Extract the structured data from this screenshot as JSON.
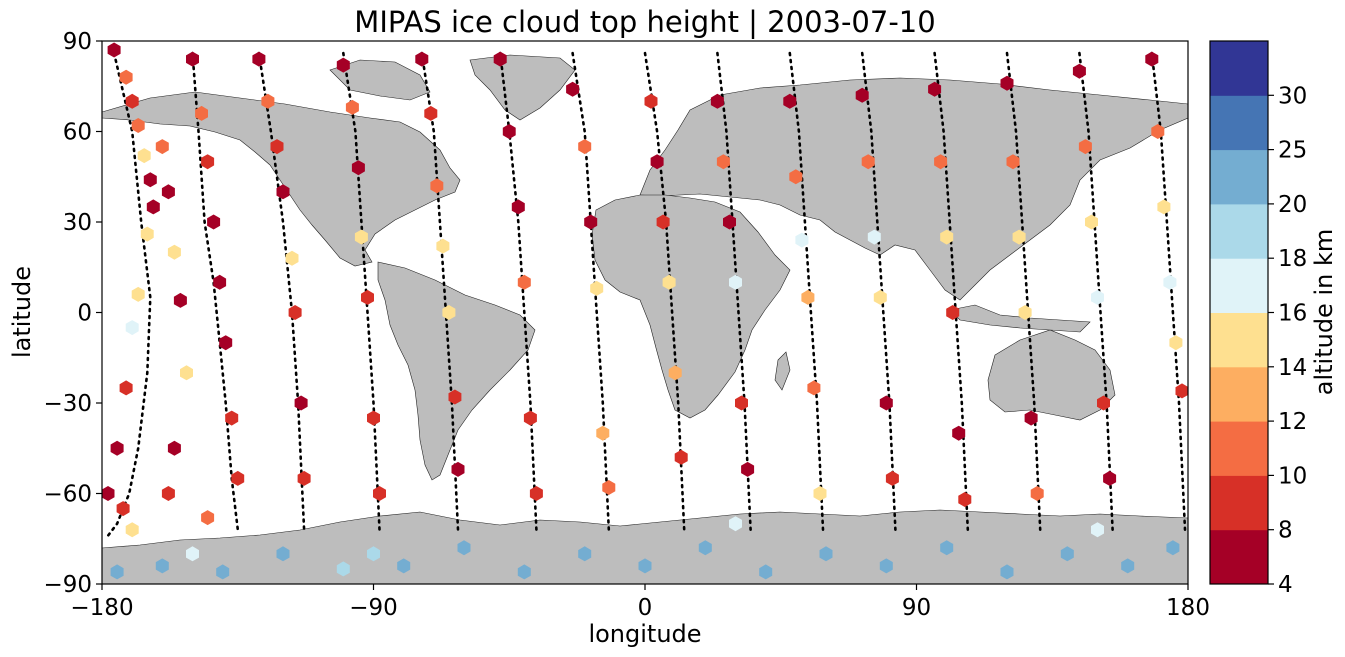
{
  "chart_data": {
    "type": "scatter",
    "title": "MIPAS ice cloud top height | 2003-07-10",
    "xlabel": "longitude",
    "ylabel": "latitude",
    "xlim": [
      -180,
      180
    ],
    "ylim": [
      -90,
      90
    ],
    "xticks": [
      "−180",
      "−90",
      "0",
      "90",
      "180"
    ],
    "xtick_values": [
      -180,
      -90,
      0,
      90,
      180
    ],
    "yticks": [
      "90",
      "60",
      "30",
      "0",
      "−30",
      "−60",
      "−90"
    ],
    "ytick_values": [
      90,
      60,
      30,
      0,
      -30,
      -60,
      -90
    ],
    "colorbar": {
      "label": "altitude in km",
      "bounds": [
        4,
        8,
        10,
        12,
        14,
        16,
        18,
        20,
        25,
        30
      ],
      "tick_labels": [
        "4",
        "8",
        "10",
        "12",
        "14",
        "16",
        "18",
        "20",
        "25",
        "30"
      ],
      "colors": [
        "#a50026",
        "#d73027",
        "#f46d43",
        "#fdae61",
        "#fee090",
        "#e0f3f8",
        "#abd9e9",
        "#74add1",
        "#4575b4",
        "#313695"
      ]
    },
    "background": "world map (land in grey, ocean in white)",
    "orbit_tracks": [
      {
        "x": [
          -176,
          -170,
          -167,
          -164,
          -165,
          -168,
          -171,
          -175,
          -178
        ],
        "y": [
          86,
          60,
          30,
          5,
          -20,
          -45,
          -60,
          -70,
          -74
        ]
      },
      {
        "x": [
          -150,
          -148,
          -146,
          -143,
          -141,
          -139,
          -137,
          -135
        ],
        "y": [
          86,
          60,
          30,
          10,
          -10,
          -30,
          -55,
          -72
        ]
      },
      {
        "x": [
          -128,
          -124,
          -120,
          -117,
          -115,
          -113
        ],
        "y": [
          86,
          60,
          30,
          0,
          -30,
          -72
        ]
      },
      {
        "x": [
          -100,
          -96,
          -94,
          -92,
          -90,
          -88
        ],
        "y": [
          86,
          60,
          30,
          0,
          -30,
          -72
        ]
      },
      {
        "x": [
          -74,
          -70,
          -68,
          -66,
          -64,
          -62
        ],
        "y": [
          86,
          60,
          30,
          0,
          -30,
          -72
        ]
      },
      {
        "x": [
          -48,
          -45,
          -42,
          -40,
          -38,
          -36
        ],
        "y": [
          86,
          60,
          30,
          0,
          -30,
          -72
        ]
      },
      {
        "x": [
          -24,
          -20,
          -18,
          -16,
          -14,
          -12
        ],
        "y": [
          86,
          60,
          30,
          0,
          -30,
          -72
        ]
      },
      {
        "x": [
          0,
          4,
          7,
          9,
          11,
          13
        ],
        "y": [
          86,
          60,
          30,
          0,
          -30,
          -72
        ]
      },
      {
        "x": [
          24,
          27,
          29,
          31,
          33,
          35
        ],
        "y": [
          86,
          60,
          30,
          0,
          -30,
          -72
        ]
      },
      {
        "x": [
          48,
          51,
          53,
          55,
          57,
          59
        ],
        "y": [
          86,
          60,
          30,
          0,
          -30,
          -72
        ]
      },
      {
        "x": [
          72,
          75,
          77,
          79,
          81,
          83
        ],
        "y": [
          86,
          60,
          30,
          0,
          -30,
          -72
        ]
      },
      {
        "x": [
          96,
          99,
          101,
          103,
          105,
          107
        ],
        "y": [
          86,
          60,
          30,
          0,
          -30,
          -72
        ]
      },
      {
        "x": [
          120,
          123,
          125,
          127,
          129,
          131
        ],
        "y": [
          86,
          60,
          30,
          0,
          -30,
          -72
        ]
      },
      {
        "x": [
          144,
          147,
          149,
          151,
          153,
          155
        ],
        "y": [
          86,
          60,
          30,
          0,
          -30,
          -72
        ]
      },
      {
        "x": [
          168,
          171,
          173,
          175,
          177,
          179
        ],
        "y": [
          86,
          60,
          30,
          0,
          -30,
          -72
        ]
      }
    ],
    "points": [
      {
        "x": -176,
        "y": 87,
        "v": 6
      },
      {
        "x": -172,
        "y": 78,
        "v": 11
      },
      {
        "x": -170,
        "y": 70,
        "v": 9
      },
      {
        "x": -168,
        "y": 62,
        "v": 11
      },
      {
        "x": -166,
        "y": 52,
        "v": 15
      },
      {
        "x": -164,
        "y": 44,
        "v": 7
      },
      {
        "x": -163,
        "y": 35,
        "v": 6
      },
      {
        "x": -165,
        "y": 26,
        "v": 15
      },
      {
        "x": -168,
        "y": 6,
        "v": 15
      },
      {
        "x": -170,
        "y": -5,
        "v": 17
      },
      {
        "x": -172,
        "y": -25,
        "v": 9
      },
      {
        "x": -175,
        "y": -45,
        "v": 7
      },
      {
        "x": -178,
        "y": -60,
        "v": 6
      },
      {
        "x": -173,
        "y": -65,
        "v": 8
      },
      {
        "x": -170,
        "y": -72,
        "v": 15
      },
      {
        "x": -160,
        "y": 55,
        "v": 11
      },
      {
        "x": -158,
        "y": 40,
        "v": 7
      },
      {
        "x": -156,
        "y": 20,
        "v": 15
      },
      {
        "x": -154,
        "y": 4,
        "v": 7
      },
      {
        "x": -152,
        "y": -20,
        "v": 15
      },
      {
        "x": -156,
        "y": -45,
        "v": 7
      },
      {
        "x": -158,
        "y": -60,
        "v": 9
      },
      {
        "x": -150,
        "y": 84,
        "v": 7
      },
      {
        "x": -147,
        "y": 66,
        "v": 11
      },
      {
        "x": -145,
        "y": 50,
        "v": 9
      },
      {
        "x": -143,
        "y": 30,
        "v": 6
      },
      {
        "x": -141,
        "y": 10,
        "v": 6
      },
      {
        "x": -139,
        "y": -10,
        "v": 7
      },
      {
        "x": -137,
        "y": -35,
        "v": 9
      },
      {
        "x": -135,
        "y": -55,
        "v": 8
      },
      {
        "x": -145,
        "y": -68,
        "v": 11
      },
      {
        "x": -128,
        "y": 84,
        "v": 6
      },
      {
        "x": -125,
        "y": 70,
        "v": 11
      },
      {
        "x": -122,
        "y": 55,
        "v": 9
      },
      {
        "x": -120,
        "y": 40,
        "v": 6
      },
      {
        "x": -117,
        "y": 18,
        "v": 15
      },
      {
        "x": -116,
        "y": 0,
        "v": 8
      },
      {
        "x": -114,
        "y": -30,
        "v": 7
      },
      {
        "x": -113,
        "y": -55,
        "v": 9
      },
      {
        "x": -100,
        "y": 82,
        "v": 7
      },
      {
        "x": -97,
        "y": 68,
        "v": 11
      },
      {
        "x": -95,
        "y": 48,
        "v": 6
      },
      {
        "x": -94,
        "y": 25,
        "v": 15
      },
      {
        "x": -92,
        "y": 5,
        "v": 9
      },
      {
        "x": -90,
        "y": -35,
        "v": 9
      },
      {
        "x": -88,
        "y": -60,
        "v": 8
      },
      {
        "x": -74,
        "y": 84,
        "v": 6
      },
      {
        "x": -71,
        "y": 66,
        "v": 8
      },
      {
        "x": -69,
        "y": 42,
        "v": 11
      },
      {
        "x": -67,
        "y": 22,
        "v": 15
      },
      {
        "x": -65,
        "y": 0,
        "v": 15
      },
      {
        "x": -63,
        "y": -28,
        "v": 9
      },
      {
        "x": -62,
        "y": -52,
        "v": 7
      },
      {
        "x": -48,
        "y": 84,
        "v": 6
      },
      {
        "x": -45,
        "y": 60,
        "v": 7
      },
      {
        "x": -42,
        "y": 35,
        "v": 6
      },
      {
        "x": -40,
        "y": 10,
        "v": 11
      },
      {
        "x": -38,
        "y": -35,
        "v": 9
      },
      {
        "x": -36,
        "y": -60,
        "v": 8
      },
      {
        "x": -24,
        "y": 74,
        "v": 6
      },
      {
        "x": -20,
        "y": 55,
        "v": 11
      },
      {
        "x": -18,
        "y": 30,
        "v": 7
      },
      {
        "x": -16,
        "y": 8,
        "v": 15
      },
      {
        "x": -14,
        "y": -40,
        "v": 13
      },
      {
        "x": -12,
        "y": -58,
        "v": 11
      },
      {
        "x": 2,
        "y": 70,
        "v": 9
      },
      {
        "x": 4,
        "y": 50,
        "v": 7
      },
      {
        "x": 6,
        "y": 30,
        "v": 9
      },
      {
        "x": 8,
        "y": 10,
        "v": 15
      },
      {
        "x": 10,
        "y": -20,
        "v": 13
      },
      {
        "x": 12,
        "y": -48,
        "v": 9
      },
      {
        "x": 24,
        "y": 70,
        "v": 6
      },
      {
        "x": 26,
        "y": 50,
        "v": 11
      },
      {
        "x": 28,
        "y": 30,
        "v": 7
      },
      {
        "x": 30,
        "y": 10,
        "v": 17
      },
      {
        "x": 32,
        "y": -30,
        "v": 9
      },
      {
        "x": 34,
        "y": -52,
        "v": 6
      },
      {
        "x": 48,
        "y": 70,
        "v": 7
      },
      {
        "x": 50,
        "y": 45,
        "v": 11
      },
      {
        "x": 52,
        "y": 24,
        "v": 17
      },
      {
        "x": 54,
        "y": 5,
        "v": 13
      },
      {
        "x": 56,
        "y": -25,
        "v": 11
      },
      {
        "x": 58,
        "y": -60,
        "v": 14
      },
      {
        "x": 72,
        "y": 72,
        "v": 6
      },
      {
        "x": 74,
        "y": 50,
        "v": 11
      },
      {
        "x": 76,
        "y": 25,
        "v": 17
      },
      {
        "x": 78,
        "y": 5,
        "v": 15
      },
      {
        "x": 80,
        "y": -30,
        "v": 7
      },
      {
        "x": 82,
        "y": -55,
        "v": 8
      },
      {
        "x": 96,
        "y": 74,
        "v": 6
      },
      {
        "x": 98,
        "y": 50,
        "v": 11
      },
      {
        "x": 100,
        "y": 25,
        "v": 15
      },
      {
        "x": 102,
        "y": 0,
        "v": 9
      },
      {
        "x": 104,
        "y": -40,
        "v": 7
      },
      {
        "x": 106,
        "y": -62,
        "v": 9
      },
      {
        "x": 120,
        "y": 76,
        "v": 7
      },
      {
        "x": 122,
        "y": 50,
        "v": 11
      },
      {
        "x": 124,
        "y": 25,
        "v": 15
      },
      {
        "x": 126,
        "y": 0,
        "v": 15
      },
      {
        "x": 128,
        "y": -35,
        "v": 7
      },
      {
        "x": 130,
        "y": -60,
        "v": 11
      },
      {
        "x": 144,
        "y": 80,
        "v": 6
      },
      {
        "x": 146,
        "y": 55,
        "v": 11
      },
      {
        "x": 148,
        "y": 30,
        "v": 15
      },
      {
        "x": 150,
        "y": 5,
        "v": 17
      },
      {
        "x": 152,
        "y": -30,
        "v": 9
      },
      {
        "x": 154,
        "y": -55,
        "v": 6
      },
      {
        "x": 168,
        "y": 84,
        "v": 6
      },
      {
        "x": 170,
        "y": 60,
        "v": 11
      },
      {
        "x": 172,
        "y": 35,
        "v": 15
      },
      {
        "x": 174,
        "y": 10,
        "v": 17
      },
      {
        "x": 176,
        "y": -10,
        "v": 15
      },
      {
        "x": 178,
        "y": -26,
        "v": 9
      },
      {
        "x": -175,
        "y": -86,
        "v": 22
      },
      {
        "x": -160,
        "y": -84,
        "v": 22
      },
      {
        "x": -140,
        "y": -86,
        "v": 22
      },
      {
        "x": -120,
        "y": -80,
        "v": 22
      },
      {
        "x": -100,
        "y": -85,
        "v": 19
      },
      {
        "x": -80,
        "y": -84,
        "v": 22
      },
      {
        "x": -60,
        "y": -78,
        "v": 22
      },
      {
        "x": -40,
        "y": -86,
        "v": 22
      },
      {
        "x": -20,
        "y": -80,
        "v": 22
      },
      {
        "x": 0,
        "y": -84,
        "v": 22
      },
      {
        "x": 20,
        "y": -78,
        "v": 22
      },
      {
        "x": 40,
        "y": -86,
        "v": 22
      },
      {
        "x": 60,
        "y": -80,
        "v": 22
      },
      {
        "x": 80,
        "y": -84,
        "v": 22
      },
      {
        "x": 100,
        "y": -78,
        "v": 22
      },
      {
        "x": 120,
        "y": -86,
        "v": 22
      },
      {
        "x": 140,
        "y": -80,
        "v": 22
      },
      {
        "x": 160,
        "y": -84,
        "v": 22
      },
      {
        "x": 175,
        "y": -78,
        "v": 22
      },
      {
        "x": -150,
        "y": -80,
        "v": 17
      },
      {
        "x": -90,
        "y": -80,
        "v": 19
      },
      {
        "x": 30,
        "y": -70,
        "v": 17
      },
      {
        "x": 150,
        "y": -72,
        "v": 17
      }
    ]
  }
}
